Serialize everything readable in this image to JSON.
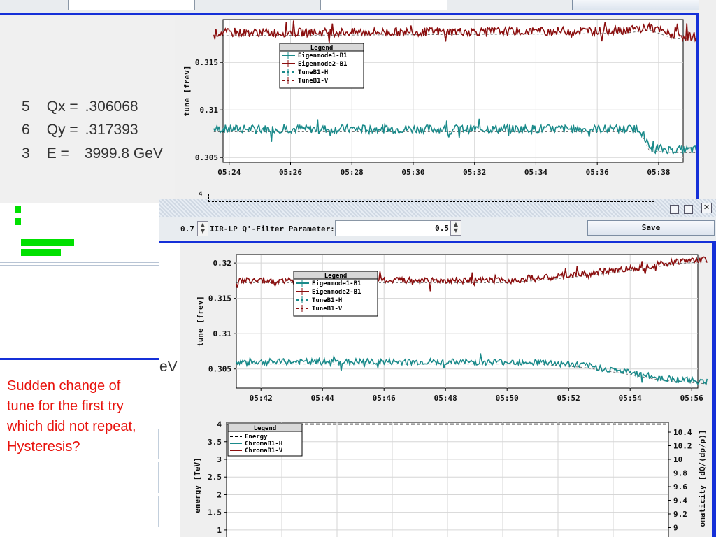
{
  "top_window": {
    "readouts": [
      {
        "prefix": "5",
        "label": "Qx =",
        "value": ".306068"
      },
      {
        "prefix": "6",
        "label": "Qy =",
        "value": ".317393"
      },
      {
        "prefix": "3",
        "label": "E =",
        "value": "3999.8 GeV"
      }
    ],
    "bottom_tick": "4"
  },
  "bottom_window": {
    "toolbar": {
      "left_value": "0.7",
      "filter_label": "IIR-LP Q'-Filter Parameter:",
      "filter_value": "0.5",
      "save_label": "Save"
    },
    "ev_fragment": "eV"
  },
  "annotation": {
    "text": "Sudden change of tune for the first try which did not repeat, Hysteresis?",
    "color": "#e8120c"
  },
  "colors": {
    "eigen1": "#1a8a8a",
    "eigen2": "#8b0f0f",
    "accent_blue": "#1530d8",
    "bar_green": "#00e000"
  },
  "chart_data": [
    {
      "type": "line",
      "ylabel": "tune [frev]",
      "x_ticks": [
        "05:24",
        "05:26",
        "05:28",
        "05:30",
        "05:32",
        "05:34",
        "05:36",
        "05:38"
      ],
      "y_ticks": [
        "0.305",
        "0.31",
        "0.315"
      ],
      "ylim": [
        0.3045,
        0.3195
      ],
      "grid": true,
      "legend": {
        "title": "Legend",
        "placement": "top-center",
        "entries": [
          "Eigenmode1-B1",
          "Eigenmode2-B1",
          "TuneB1-H",
          "TuneB1-V"
        ]
      },
      "series": [
        {
          "name": "Eigenmode1-B1",
          "x": [
            "05:23.5",
            "05:37.4",
            "05:37.7",
            "05:38.5",
            "05:39.5"
          ],
          "values": [
            0.308,
            0.308,
            0.306,
            0.3058,
            0.3058
          ]
        },
        {
          "name": "Eigenmode2-B1",
          "x": [
            "05:23.5",
            "05:35.5",
            "05:37.0",
            "05:37.7",
            "05:38.5",
            "05:39.5"
          ],
          "values": [
            0.3181,
            0.3183,
            0.3184,
            0.3187,
            0.3178,
            0.3177
          ]
        }
      ]
    },
    {
      "type": "line",
      "ylabel": "tune [frev]",
      "x_ticks": [
        "05:42",
        "05:44",
        "05:46",
        "05:48",
        "05:50",
        "05:52",
        "05:54",
        "05:56"
      ],
      "y_ticks": [
        "0.305",
        "0.31",
        "0.315",
        "0.32"
      ],
      "ylim": [
        0.3023,
        0.3212
      ],
      "grid": true,
      "legend": {
        "title": "Legend",
        "placement": "top-center",
        "entries": [
          "Eigenmode1-B1",
          "Eigenmode2-B1",
          "TuneB1-H",
          "TuneB1-V"
        ]
      },
      "series": [
        {
          "name": "Eigenmode1-B1",
          "x": [
            "05:41.2",
            "05:51.0",
            "05:52.5",
            "05:54.0",
            "05:55.0",
            "05:56.5"
          ],
          "values": [
            0.306,
            0.306,
            0.3055,
            0.3045,
            0.3037,
            0.3032
          ]
        },
        {
          "name": "Eigenmode2-B1",
          "x": [
            "05:41.2",
            "05:50.0",
            "05:51.5",
            "05:53.0",
            "05:54.5",
            "05:55.5",
            "05:56.5"
          ],
          "values": [
            0.3175,
            0.3175,
            0.318,
            0.3187,
            0.3195,
            0.3202,
            0.3205
          ]
        }
      ]
    },
    {
      "type": "line",
      "ylabel": "energy [TeV]",
      "y2label": "omaticity [dQ/(dp/p)]",
      "y_ticks": [
        "1",
        "1.5",
        "2",
        "2.5",
        "3",
        "3.5",
        "4"
      ],
      "y2_ticks": [
        "9",
        "9.2",
        "9.4",
        "9.6",
        "9.8",
        "10",
        "10.2",
        "10.4"
      ],
      "ylim": [
        0.8,
        4.05
      ],
      "legend": {
        "title": "Legend",
        "placement": "top-left",
        "entries": [
          "Energy",
          "ChromaB1-H",
          "ChromaB1-V"
        ]
      },
      "series": [
        {
          "name": "Energy",
          "x": [
            0,
            1
          ],
          "values": [
            4.0,
            4.0
          ]
        }
      ]
    }
  ]
}
